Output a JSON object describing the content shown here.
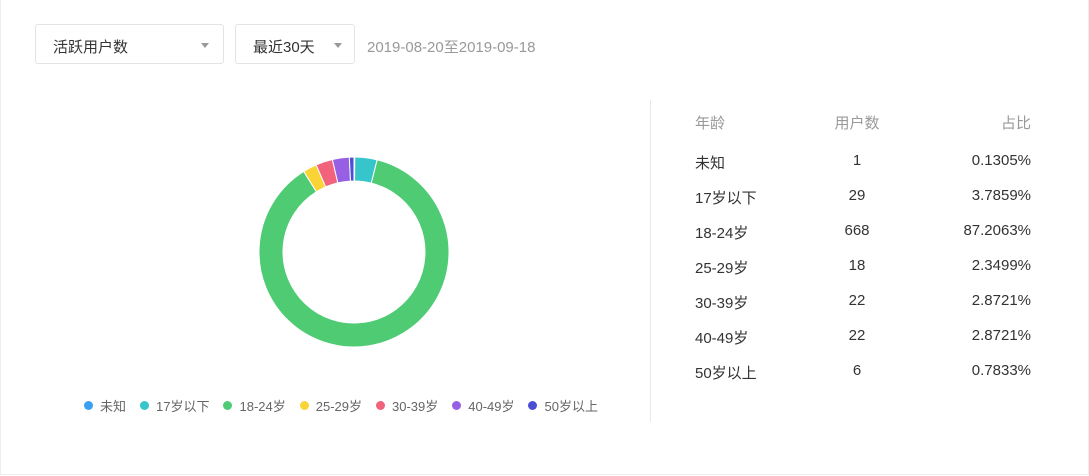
{
  "filters": {
    "metric": "活跃用户数",
    "period": "最近30天",
    "date_range": "2019-08-20至2019-09-18"
  },
  "table": {
    "headers": [
      "年龄",
      "用户数",
      "占比"
    ],
    "rows": [
      {
        "age": "未知",
        "count": "1",
        "share": "0.1305%"
      },
      {
        "age": "17岁以下",
        "count": "29",
        "share": "3.7859%"
      },
      {
        "age": "18-24岁",
        "count": "668",
        "share": "87.2063%"
      },
      {
        "age": "25-29岁",
        "count": "18",
        "share": "2.3499%"
      },
      {
        "age": "30-39岁",
        "count": "22",
        "share": "2.8721%"
      },
      {
        "age": "40-49岁",
        "count": "22",
        "share": "2.8721%"
      },
      {
        "age": "50岁以上",
        "count": "6",
        "share": "0.7833%"
      }
    ]
  },
  "chart_data": {
    "type": "pie",
    "donut": true,
    "legend_position": "bottom",
    "categories": [
      "未知",
      "17岁以下",
      "18-24岁",
      "25-29岁",
      "30-39岁",
      "40-49岁",
      "50岁以上"
    ],
    "values": [
      1,
      29,
      668,
      18,
      22,
      22,
      6
    ],
    "colors": [
      "#3aa0f2",
      "#35c5cb",
      "#4ecb73",
      "#fad337",
      "#f2637b",
      "#975fe4",
      "#4c4fd6"
    ]
  }
}
